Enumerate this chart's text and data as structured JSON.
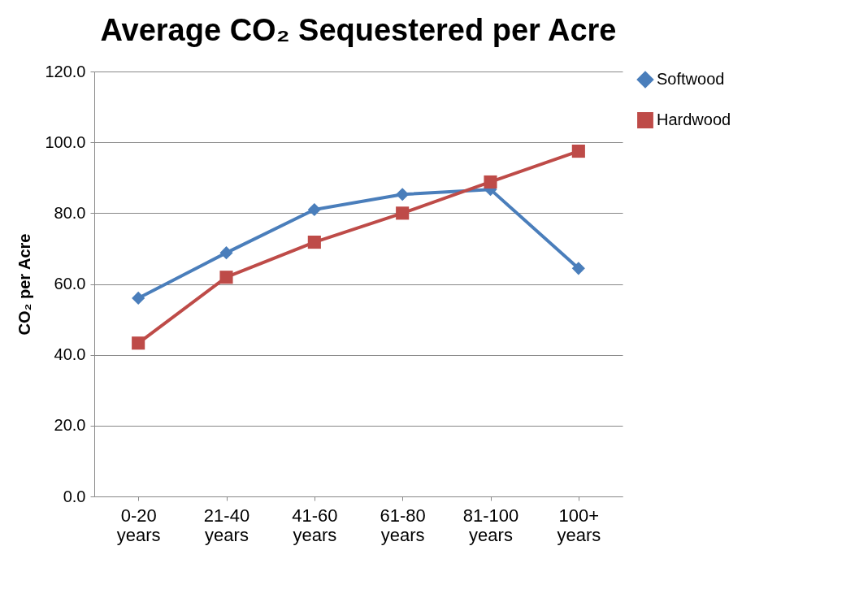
{
  "chart_data": {
    "type": "line",
    "title": "Average CO₂ Sequestered per Acre",
    "ylabel": "CO₂ per Acre",
    "categories": [
      "0-20 years",
      "21-40 years",
      "41-60 years",
      "61-80 years",
      "81-100 years",
      "100+ years"
    ],
    "series": [
      {
        "name": "Softwood",
        "color": "#4a7ebb",
        "marker": "diamond",
        "values": [
          56.0,
          68.8,
          81.0,
          85.3,
          86.7,
          64.4
        ]
      },
      {
        "name": "Hardwood",
        "color": "#be4b48",
        "marker": "square",
        "values": [
          43.3,
          61.9,
          71.8,
          80.0,
          88.8,
          97.5
        ]
      }
    ],
    "ylim": [
      0,
      120
    ],
    "yticks": [
      {
        "value": 0,
        "label": "0.0"
      },
      {
        "value": 20,
        "label": "20.0"
      },
      {
        "value": 40,
        "label": "40.0"
      },
      {
        "value": 60,
        "label": "60.0"
      },
      {
        "value": 80,
        "label": "80.0"
      },
      {
        "value": 100,
        "label": "100.0"
      },
      {
        "value": 120,
        "label": "120.0"
      }
    ],
    "grid": "y",
    "legend": "right",
    "line_style": "solid"
  }
}
